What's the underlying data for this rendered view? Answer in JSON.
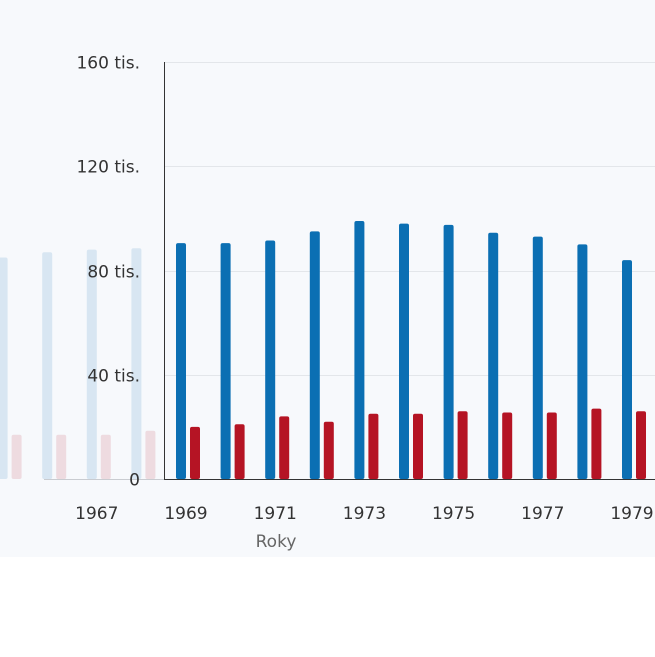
{
  "chart_data": {
    "type": "bar",
    "x": [
      1965,
      1966,
      1967,
      1968,
      1969,
      1970,
      1971,
      1972,
      1973,
      1974,
      1975,
      1976,
      1977,
      1978,
      1979
    ],
    "x_tick_labels": [
      "1967",
      "1969",
      "1971",
      "1973",
      "1975",
      "1977",
      "1979"
    ],
    "faded_before_year": 1969,
    "series": [
      {
        "color": "#0b6fb3",
        "values": [
          85000,
          87000,
          88000,
          88500,
          90500,
          90500,
          91500,
          95000,
          99000,
          98000,
          97500,
          94500,
          93000,
          90000,
          84000
        ]
      },
      {
        "color": "#b51424",
        "values": [
          17000,
          17000,
          17000,
          18500,
          20000,
          21000,
          24000,
          22000,
          25000,
          25000,
          26000,
          25500,
          25500,
          27000,
          26000
        ]
      }
    ],
    "y_ticks": [
      {
        "value": 0,
        "label": "0"
      },
      {
        "value": 40000,
        "label": "40 tis."
      },
      {
        "value": 80000,
        "label": "80 tis."
      },
      {
        "value": 120000,
        "label": "120 tis."
      },
      {
        "value": 160000,
        "label": "160 tis."
      }
    ],
    "ylim": [
      0,
      160000
    ],
    "xlabel": "Roky",
    "grid": true
  }
}
